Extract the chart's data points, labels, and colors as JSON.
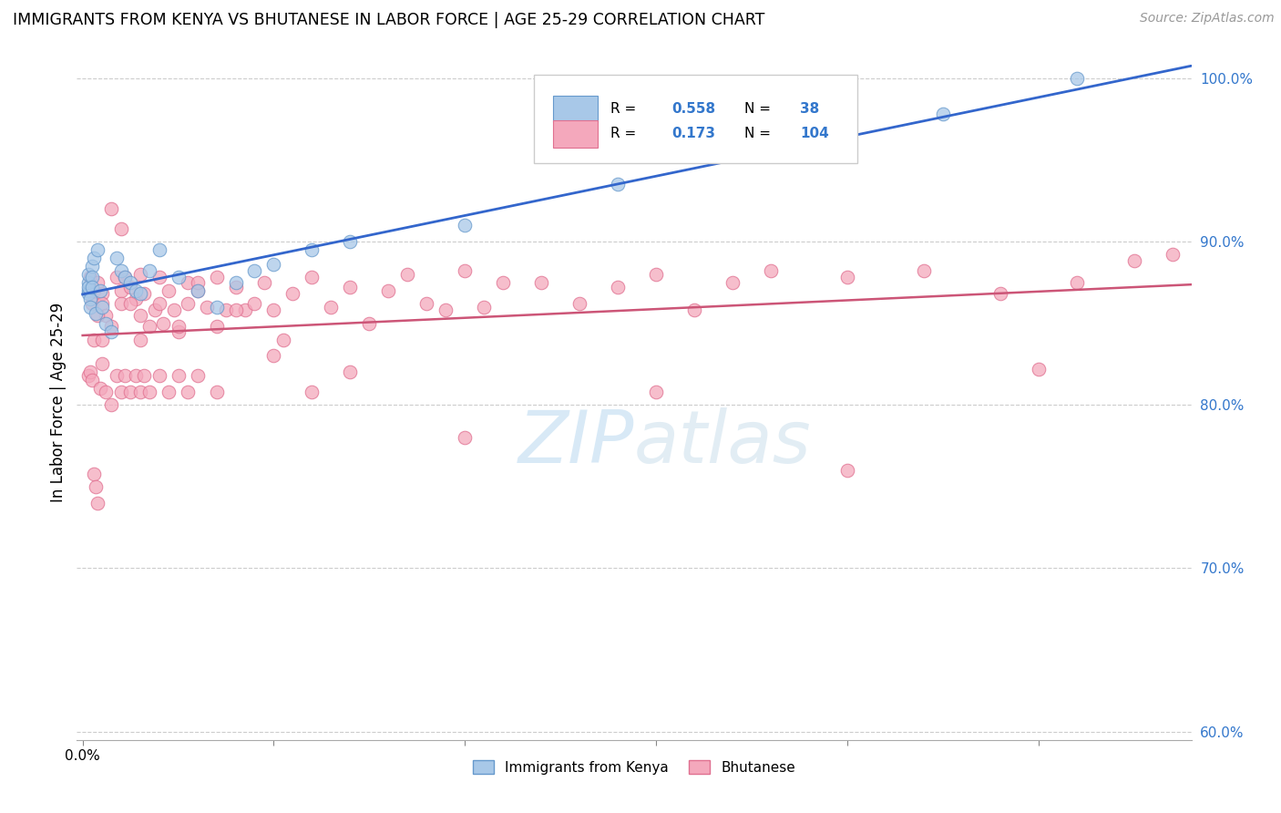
{
  "title": "IMMIGRANTS FROM KENYA VS BHUTANESE IN LABOR FORCE | AGE 25-29 CORRELATION CHART",
  "source": "Source: ZipAtlas.com",
  "ylabel": "In Labor Force | Age 25-29",
  "watermark": "ZIPatlas",
  "kenya_R": 0.558,
  "kenya_N": 38,
  "bhutan_R": 0.173,
  "bhutan_N": 104,
  "kenya_color": "#a8c8e8",
  "bhutan_color": "#f4a8bc",
  "kenya_edge_color": "#6699cc",
  "bhutan_edge_color": "#e07090",
  "kenya_line_color": "#3366cc",
  "bhutan_line_color": "#cc5577",
  "xlim": [
    -3e-05,
    0.0058
  ],
  "ylim": [
    0.595,
    1.008
  ],
  "yticks": [
    0.6,
    0.7,
    0.8,
    0.9,
    1.0
  ],
  "ytick_labels": [
    "60.0%",
    "70.0%",
    "80.0%",
    "90.0%",
    "100.0%"
  ],
  "xticks": [
    0.0,
    0.001,
    0.002,
    0.003,
    0.004,
    0.005
  ],
  "xtick_labels": [
    "0.0%",
    "",
    "",
    "",
    "",
    ""
  ],
  "kenya_x": [
    3e-05,
    3e-05,
    3e-05,
    3e-05,
    3e-05,
    4e-05,
    4e-05,
    5e-05,
    5e-05,
    5e-05,
    6e-05,
    7e-05,
    8e-05,
    9e-05,
    0.0001,
    0.00012,
    0.00015,
    0.00018,
    0.0002,
    0.00022,
    0.00025,
    0.00028,
    0.0003,
    0.00035,
    0.0004,
    0.0005,
    0.0006,
    0.0007,
    0.0008,
    0.0009,
    0.001,
    0.0012,
    0.0014,
    0.002,
    0.0028,
    0.0038,
    0.0045,
    0.0052
  ],
  "kenya_y": [
    0.87,
    0.868,
    0.875,
    0.88,
    0.872,
    0.865,
    0.86,
    0.885,
    0.878,
    0.872,
    0.89,
    0.856,
    0.895,
    0.87,
    0.86,
    0.85,
    0.845,
    0.89,
    0.882,
    0.878,
    0.875,
    0.87,
    0.868,
    0.882,
    0.895,
    0.878,
    0.87,
    0.86,
    0.875,
    0.882,
    0.886,
    0.895,
    0.9,
    0.91,
    0.935,
    0.962,
    0.978,
    1.0
  ],
  "bhutan_x": [
    4e-05,
    5e-05,
    6e-05,
    8e-05,
    0.0001,
    0.0001,
    0.00012,
    0.00015,
    0.00018,
    0.0002,
    0.0002,
    0.00022,
    0.00025,
    0.00028,
    0.0003,
    0.0003,
    0.00032,
    0.00035,
    0.00038,
    0.0004,
    0.00042,
    0.00045,
    0.00048,
    0.0005,
    0.00055,
    0.00055,
    0.0006,
    0.00065,
    0.0007,
    0.00075,
    0.0008,
    0.00085,
    0.0009,
    0.00095,
    0.001,
    0.00105,
    0.0011,
    0.0012,
    0.0013,
    0.0014,
    0.0015,
    0.0016,
    0.0017,
    0.0018,
    0.0019,
    0.002,
    0.0021,
    0.0022,
    0.0024,
    0.0026,
    0.0028,
    0.003,
    0.0032,
    0.0034,
    0.0036,
    0.004,
    0.0044,
    0.0048,
    0.0052,
    0.0055,
    0.0057,
    6e-05,
    8e-05,
    0.0001,
    0.00015,
    0.0002,
    0.00025,
    0.0003,
    0.0004,
    0.0005,
    0.0006,
    0.0007,
    0.0008,
    0.001,
    0.0012,
    0.0014,
    0.002,
    0.003,
    0.004,
    0.005,
    3e-05,
    4e-05,
    5e-05,
    6e-05,
    7e-05,
    8e-05,
    9e-05,
    0.0001,
    0.00012,
    0.00015,
    0.00018,
    0.0002,
    0.00022,
    0.00025,
    0.00028,
    0.0003,
    0.00032,
    0.00035,
    0.0004,
    0.00045,
    0.0005,
    0.00055,
    0.0006,
    0.0007
  ],
  "bhutan_y": [
    0.878,
    0.862,
    0.87,
    0.875,
    0.868,
    0.862,
    0.855,
    0.848,
    0.878,
    0.87,
    0.862,
    0.878,
    0.872,
    0.865,
    0.88,
    0.855,
    0.868,
    0.848,
    0.858,
    0.878,
    0.85,
    0.87,
    0.858,
    0.845,
    0.875,
    0.862,
    0.87,
    0.86,
    0.878,
    0.858,
    0.872,
    0.858,
    0.862,
    0.875,
    0.858,
    0.84,
    0.868,
    0.878,
    0.86,
    0.872,
    0.85,
    0.87,
    0.88,
    0.862,
    0.858,
    0.882,
    0.86,
    0.875,
    0.875,
    0.862,
    0.872,
    0.88,
    0.858,
    0.875,
    0.882,
    0.878,
    0.882,
    0.868,
    0.875,
    0.888,
    0.892,
    0.84,
    0.855,
    0.84,
    0.92,
    0.908,
    0.862,
    0.84,
    0.862,
    0.848,
    0.875,
    0.848,
    0.858,
    0.83,
    0.808,
    0.82,
    0.78,
    0.808,
    0.76,
    0.822,
    0.818,
    0.82,
    0.815,
    0.758,
    0.75,
    0.74,
    0.81,
    0.825,
    0.808,
    0.8,
    0.818,
    0.808,
    0.818,
    0.808,
    0.818,
    0.808,
    0.818,
    0.808,
    0.818,
    0.808,
    0.818,
    0.808,
    0.818,
    0.808
  ]
}
